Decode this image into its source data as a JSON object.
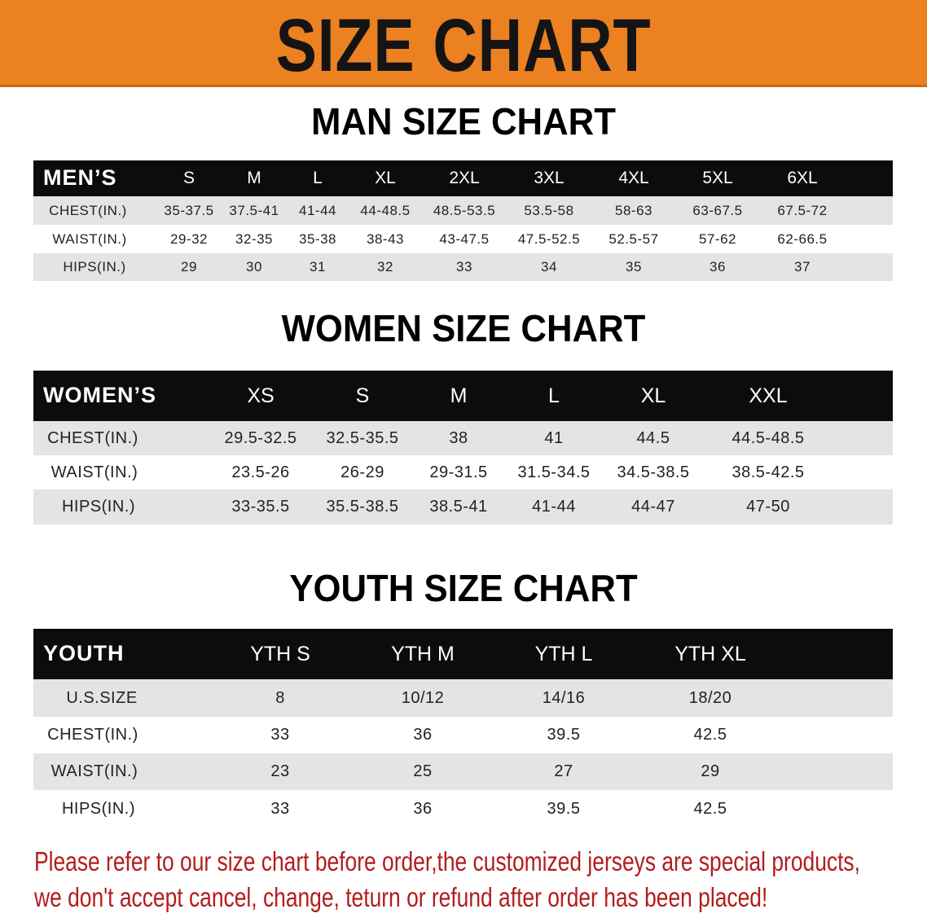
{
  "banner": {
    "title": "SIZE CHART",
    "color": "#ec8122"
  },
  "men": {
    "title": "MAN SIZE CHART",
    "header_label": "MEN’S",
    "sizes": [
      "S",
      "M",
      "L",
      "XL",
      "2XL",
      "3XL",
      "4XL",
      "5XL",
      "6XL"
    ],
    "rows": [
      {
        "label": "CHEST(IN.)",
        "values": [
          "35-37.5",
          "37.5-41",
          "41-44",
          "44-48.5",
          "48.5-53.5",
          "53.5-58",
          "58-63",
          "63-67.5",
          "67.5-72"
        ]
      },
      {
        "label": "WAIST(IN.)",
        "values": [
          "29-32",
          "32-35",
          "35-38",
          "38-43",
          "43-47.5",
          "47.5-52.5",
          "52.5-57",
          "57-62",
          "62-66.5"
        ]
      },
      {
        "label": "HIPS(IN.)",
        "values": [
          "29",
          "30",
          "31",
          "32",
          "33",
          "34",
          "35",
          "36",
          "37"
        ]
      }
    ]
  },
  "women": {
    "title": "WOMEN SIZE CHART",
    "header_label": "WOMEN’S",
    "sizes": [
      "XS",
      "S",
      "M",
      "L",
      "XL",
      "XXL"
    ],
    "rows": [
      {
        "label": "CHEST(IN.)",
        "values": [
          "29.5-32.5",
          "32.5-35.5",
          "38",
          "41",
          "44.5",
          "44.5-48.5"
        ]
      },
      {
        "label": "WAIST(IN.)",
        "values": [
          "23.5-26",
          "26-29",
          "29-31.5",
          "31.5-34.5",
          "34.5-38.5",
          "38.5-42.5"
        ]
      },
      {
        "label": "HIPS(IN.)",
        "values": [
          "33-35.5",
          "35.5-38.5",
          "38.5-41",
          "41-44",
          "44-47",
          "47-50"
        ]
      }
    ]
  },
  "youth": {
    "title": "YOUTH SIZE CHART",
    "header_label": "YOUTH",
    "sizes": [
      "YTH S",
      "YTH M",
      "YTH L",
      "YTH XL"
    ],
    "rows": [
      {
        "label": "U.S.SIZE",
        "values": [
          "8",
          "10/12",
          "14/16",
          "18/20"
        ]
      },
      {
        "label": "CHEST(IN.)",
        "values": [
          "33",
          "36",
          "39.5",
          "42.5"
        ]
      },
      {
        "label": "WAIST(IN.)",
        "values": [
          "23",
          "25",
          "27",
          "29"
        ]
      },
      {
        "label": "HIPS(IN.)",
        "values": [
          "33",
          "36",
          "39.5",
          "42.5"
        ]
      }
    ]
  },
  "notice": {
    "line1": "Please refer to our size chart before order,the customized jerseys are special products,",
    "line2": "we don't accept cancel, change, teturn or refund after order has been placed!",
    "color": "#b41c1c"
  }
}
